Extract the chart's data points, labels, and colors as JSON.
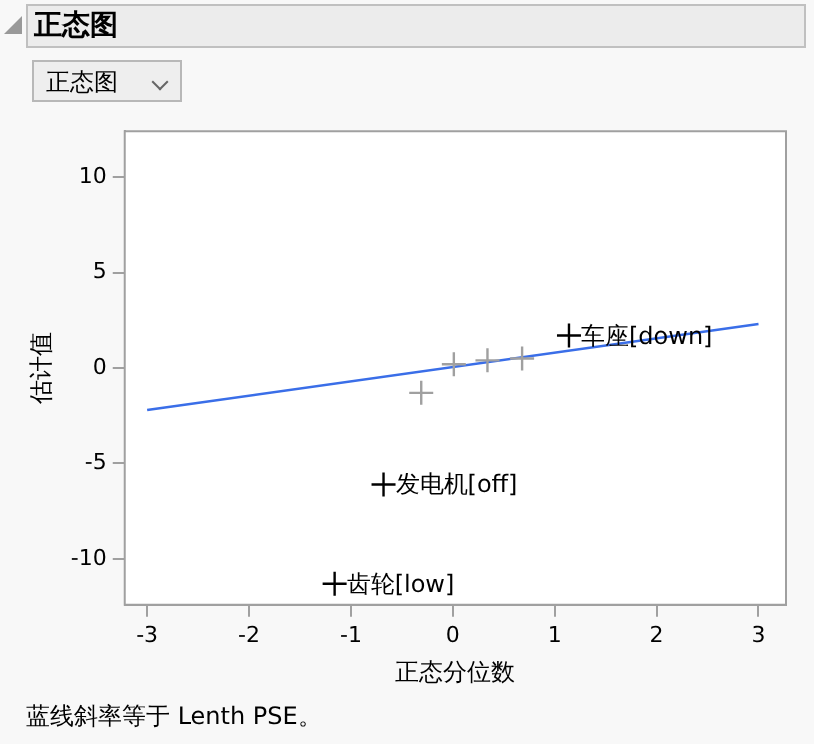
{
  "chart_data": {
    "type": "scatter",
    "title": "正态图",
    "subtitle": "正态图",
    "xlabel": "正态分位数",
    "ylabel": "估计值",
    "xlim": [
      -3.22,
      3.27
    ],
    "ylim": [
      -12.4,
      12.4
    ],
    "xticks": [
      -3,
      -2,
      -1,
      0,
      1,
      2,
      3
    ],
    "yticks": [
      -10,
      -5,
      0,
      5,
      10
    ],
    "marker": "cross",
    "series": [
      {
        "color": "#000000",
        "x": [
          1.14,
          -0.68,
          -1.16
        ],
        "values": [
          1.7,
          -6.1,
          -11.3
        ]
      },
      {
        "color": "#a0a0a0",
        "x": [
          -0.31,
          0.01,
          0.34,
          0.68
        ],
        "values": [
          -1.3,
          0.2,
          0.4,
          0.5
        ]
      },
      {
        "type": "line",
        "color": "#3a6ee8",
        "marker": "none",
        "x": [
          -3,
          3
        ],
        "values": [
          -2.2,
          2.3
        ]
      }
    ],
    "annotations": [
      {
        "text": "车座[down]",
        "x": 1.14,
        "y": 1.7
      },
      {
        "text": "发电机[off]",
        "x": -0.68,
        "y": -6.1
      },
      {
        "text": "齿轮[low]",
        "x": -1.16,
        "y": -11.3
      },
      "蓝线斜率等于 Lenth PSE。"
    ]
  }
}
